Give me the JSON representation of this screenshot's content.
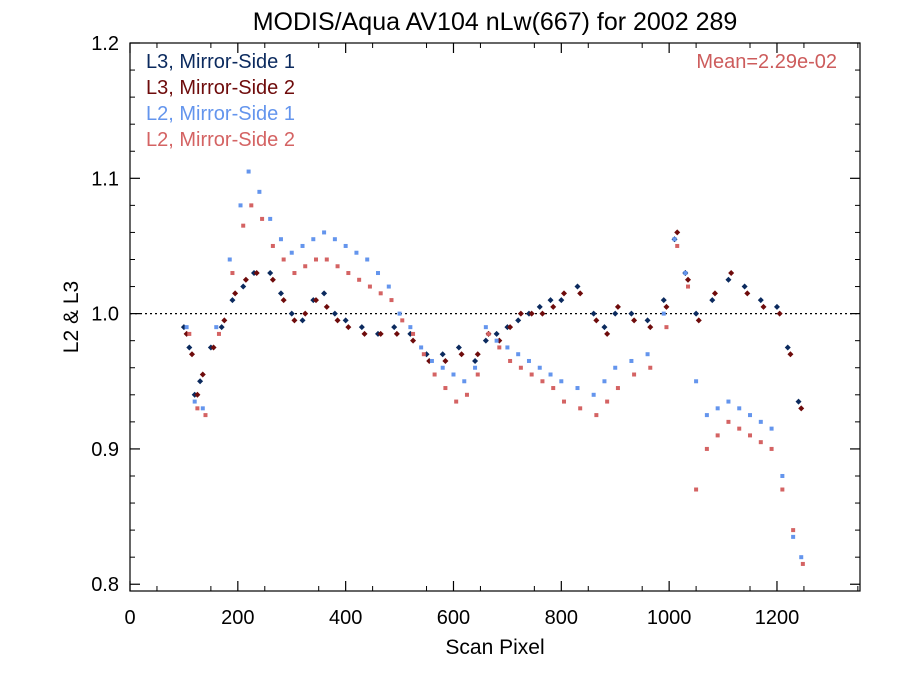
{
  "chart_data": {
    "type": "scatter",
    "title": "MODIS/Aqua AV104 nLw(667) for 2002 289",
    "xlabel": "Scan Pixel",
    "ylabel": "L2 & L3",
    "xlim": [
      0,
      1354
    ],
    "ylim": [
      0.795,
      1.2
    ],
    "x_ticks": [
      0,
      200,
      400,
      600,
      800,
      1000,
      1200
    ],
    "x_tick_labels": [
      "0",
      "200",
      "400",
      "600",
      "800",
      "1000",
      "1200"
    ],
    "y_ticks": [
      0.8,
      0.9,
      1.0,
      1.1,
      1.2
    ],
    "y_tick_labels": [
      "0.8",
      "0.9",
      "1.0",
      "1.1",
      "1.2"
    ],
    "reference_line": 1.0,
    "annotation": "Mean=2.29e-02",
    "annotation_color": "#cd5c5c",
    "legend_position": "top-left",
    "series": [
      {
        "name": "L3, Mirror-Side 1",
        "color": "#0b2a5e",
        "marker": "diamond",
        "points": [
          [
            100,
            0.99
          ],
          [
            110,
            0.975
          ],
          [
            120,
            0.94
          ],
          [
            130,
            0.95
          ],
          [
            150,
            0.975
          ],
          [
            170,
            0.99
          ],
          [
            190,
            1.01
          ],
          [
            210,
            1.02
          ],
          [
            230,
            1.03
          ],
          [
            260,
            1.03
          ],
          [
            280,
            1.015
          ],
          [
            300,
            1.0
          ],
          [
            320,
            0.995
          ],
          [
            340,
            1.01
          ],
          [
            360,
            1.015
          ],
          [
            380,
            1.0
          ],
          [
            400,
            0.995
          ],
          [
            430,
            0.99
          ],
          [
            460,
            0.985
          ],
          [
            490,
            0.99
          ],
          [
            520,
            0.985
          ],
          [
            550,
            0.97
          ],
          [
            580,
            0.97
          ],
          [
            610,
            0.975
          ],
          [
            640,
            0.965
          ],
          [
            660,
            0.98
          ],
          [
            680,
            0.985
          ],
          [
            700,
            0.99
          ],
          [
            720,
            0.995
          ],
          [
            740,
            1.0
          ],
          [
            760,
            1.005
          ],
          [
            780,
            1.01
          ],
          [
            800,
            1.01
          ],
          [
            830,
            1.02
          ],
          [
            860,
            1.0
          ],
          [
            880,
            0.99
          ],
          [
            900,
            1.0
          ],
          [
            930,
            1.0
          ],
          [
            960,
            0.995
          ],
          [
            990,
            1.01
          ],
          [
            1010,
            1.055
          ],
          [
            1030,
            1.03
          ],
          [
            1050,
            1.0
          ],
          [
            1080,
            1.01
          ],
          [
            1110,
            1.025
          ],
          [
            1140,
            1.02
          ],
          [
            1170,
            1.01
          ],
          [
            1200,
            1.005
          ],
          [
            1220,
            0.975
          ],
          [
            1240,
            0.935
          ]
        ]
      },
      {
        "name": "L3, Mirror-Side 2",
        "color": "#6e0b0b",
        "marker": "diamond",
        "points": [
          [
            105,
            0.985
          ],
          [
            115,
            0.97
          ],
          [
            125,
            0.94
          ],
          [
            135,
            0.955
          ],
          [
            155,
            0.975
          ],
          [
            175,
            0.995
          ],
          [
            195,
            1.015
          ],
          [
            215,
            1.025
          ],
          [
            235,
            1.03
          ],
          [
            265,
            1.025
          ],
          [
            285,
            1.01
          ],
          [
            305,
            0.995
          ],
          [
            325,
            1.0
          ],
          [
            345,
            1.01
          ],
          [
            365,
            1.005
          ],
          [
            385,
            0.995
          ],
          [
            405,
            0.99
          ],
          [
            435,
            0.985
          ],
          [
            465,
            0.985
          ],
          [
            495,
            0.985
          ],
          [
            525,
            0.98
          ],
          [
            555,
            0.965
          ],
          [
            585,
            0.965
          ],
          [
            615,
            0.97
          ],
          [
            645,
            0.97
          ],
          [
            665,
            0.985
          ],
          [
            685,
            0.98
          ],
          [
            705,
            0.99
          ],
          [
            725,
            1.0
          ],
          [
            745,
            1.0
          ],
          [
            765,
            1.0
          ],
          [
            785,
            1.005
          ],
          [
            805,
            1.015
          ],
          [
            835,
            1.015
          ],
          [
            865,
            0.995
          ],
          [
            885,
            0.985
          ],
          [
            905,
            1.005
          ],
          [
            935,
            0.995
          ],
          [
            965,
            0.99
          ],
          [
            995,
            1.005
          ],
          [
            1015,
            1.06
          ],
          [
            1035,
            1.025
          ],
          [
            1055,
            0.995
          ],
          [
            1085,
            1.015
          ],
          [
            1115,
            1.03
          ],
          [
            1145,
            1.015
          ],
          [
            1175,
            1.005
          ],
          [
            1205,
            1.0
          ],
          [
            1225,
            0.97
          ],
          [
            1245,
            0.93
          ]
        ]
      },
      {
        "name": "L2, Mirror-Side 1",
        "color": "#6495ed",
        "marker": "square",
        "points": [
          [
            105,
            0.99
          ],
          [
            120,
            0.935
          ],
          [
            135,
            0.93
          ],
          [
            160,
            0.99
          ],
          [
            185,
            1.04
          ],
          [
            205,
            1.08
          ],
          [
            220,
            1.105
          ],
          [
            240,
            1.09
          ],
          [
            260,
            1.07
          ],
          [
            280,
            1.055
          ],
          [
            300,
            1.045
          ],
          [
            320,
            1.05
          ],
          [
            340,
            1.055
          ],
          [
            360,
            1.06
          ],
          [
            380,
            1.055
          ],
          [
            400,
            1.05
          ],
          [
            420,
            1.045
          ],
          [
            440,
            1.04
          ],
          [
            460,
            1.03
          ],
          [
            480,
            1.02
          ],
          [
            500,
            1.0
          ],
          [
            520,
            0.99
          ],
          [
            540,
            0.975
          ],
          [
            560,
            0.965
          ],
          [
            580,
            0.96
          ],
          [
            600,
            0.955
          ],
          [
            620,
            0.95
          ],
          [
            640,
            0.96
          ],
          [
            660,
            0.99
          ],
          [
            680,
            0.98
          ],
          [
            700,
            0.975
          ],
          [
            720,
            0.97
          ],
          [
            740,
            0.965
          ],
          [
            760,
            0.96
          ],
          [
            780,
            0.955
          ],
          [
            800,
            0.95
          ],
          [
            830,
            0.945
          ],
          [
            860,
            0.94
          ],
          [
            880,
            0.95
          ],
          [
            900,
            0.96
          ],
          [
            930,
            0.965
          ],
          [
            960,
            0.97
          ],
          [
            990,
            1.0
          ],
          [
            1010,
            1.055
          ],
          [
            1030,
            1.03
          ],
          [
            1050,
            0.95
          ],
          [
            1070,
            0.925
          ],
          [
            1090,
            0.93
          ],
          [
            1110,
            0.935
          ],
          [
            1130,
            0.93
          ],
          [
            1150,
            0.925
          ],
          [
            1170,
            0.92
          ],
          [
            1190,
            0.915
          ],
          [
            1210,
            0.88
          ],
          [
            1230,
            0.835
          ],
          [
            1245,
            0.82
          ]
        ]
      },
      {
        "name": "L2, Mirror-Side 2",
        "color": "#d46363",
        "marker": "square",
        "points": [
          [
            110,
            0.985
          ],
          [
            125,
            0.93
          ],
          [
            140,
            0.925
          ],
          [
            165,
            0.985
          ],
          [
            190,
            1.03
          ],
          [
            210,
            1.065
          ],
          [
            225,
            1.08
          ],
          [
            245,
            1.07
          ],
          [
            265,
            1.05
          ],
          [
            285,
            1.04
          ],
          [
            305,
            1.03
          ],
          [
            325,
            1.035
          ],
          [
            345,
            1.04
          ],
          [
            365,
            1.04
          ],
          [
            385,
            1.035
          ],
          [
            405,
            1.03
          ],
          [
            425,
            1.025
          ],
          [
            445,
            1.02
          ],
          [
            465,
            1.015
          ],
          [
            485,
            1.01
          ],
          [
            505,
            0.995
          ],
          [
            525,
            0.985
          ],
          [
            545,
            0.97
          ],
          [
            565,
            0.955
          ],
          [
            585,
            0.945
          ],
          [
            605,
            0.935
          ],
          [
            625,
            0.94
          ],
          [
            645,
            0.955
          ],
          [
            665,
            0.985
          ],
          [
            685,
            0.975
          ],
          [
            705,
            0.965
          ],
          [
            725,
            0.96
          ],
          [
            745,
            0.955
          ],
          [
            765,
            0.95
          ],
          [
            785,
            0.945
          ],
          [
            805,
            0.935
          ],
          [
            835,
            0.93
          ],
          [
            865,
            0.925
          ],
          [
            885,
            0.935
          ],
          [
            905,
            0.945
          ],
          [
            935,
            0.955
          ],
          [
            965,
            0.96
          ],
          [
            995,
            0.99
          ],
          [
            1015,
            1.05
          ],
          [
            1035,
            1.02
          ],
          [
            1050,
            0.87
          ],
          [
            1070,
            0.9
          ],
          [
            1090,
            0.91
          ],
          [
            1110,
            0.92
          ],
          [
            1130,
            0.915
          ],
          [
            1150,
            0.91
          ],
          [
            1170,
            0.905
          ],
          [
            1190,
            0.9
          ],
          [
            1210,
            0.87
          ],
          [
            1230,
            0.84
          ],
          [
            1248,
            0.815
          ]
        ]
      }
    ]
  }
}
